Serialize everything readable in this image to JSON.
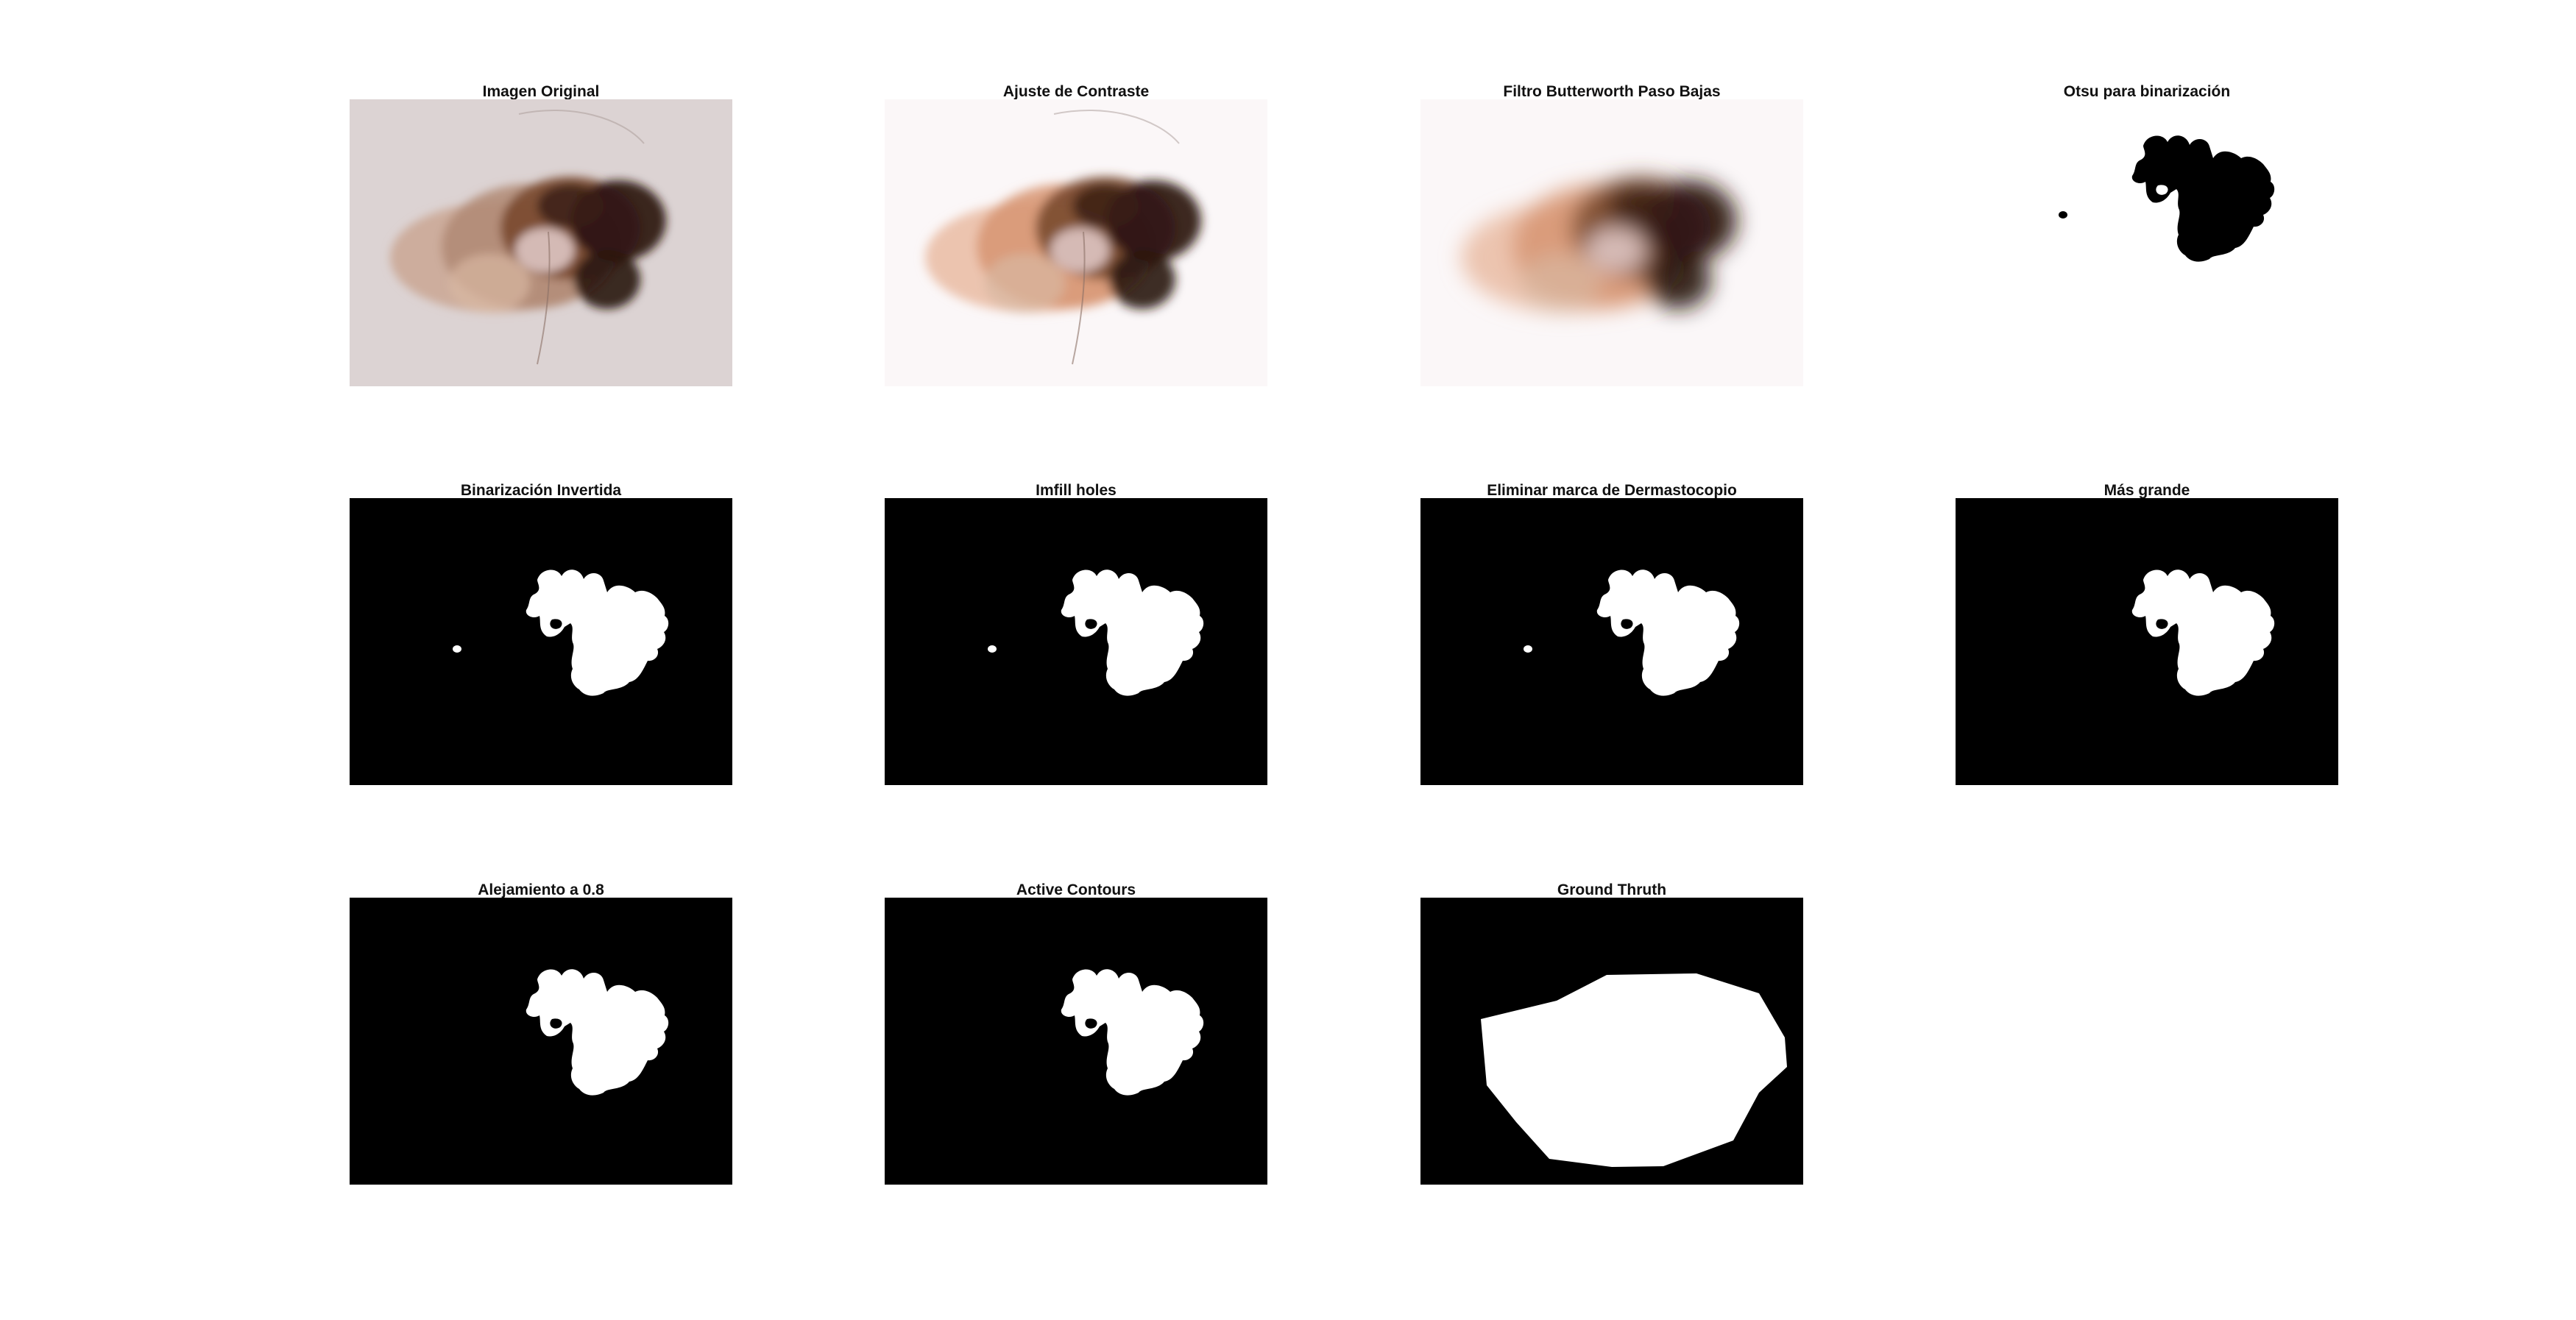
{
  "figure": {
    "panels": [
      {
        "title": "Imagen Original",
        "kind": "original"
      },
      {
        "title": "Ajuste de Contraste",
        "kind": "contrast"
      },
      {
        "title": "Filtro Butterworth Paso Bajas",
        "kind": "blur"
      },
      {
        "title": "Otsu para binarización",
        "kind": "otsu"
      },
      {
        "title": "Binarización Invertida",
        "kind": "inverted"
      },
      {
        "title": "Imfill holes",
        "kind": "inverted"
      },
      {
        "title": "Eliminar marca de Dermastocopio",
        "kind": "inverted"
      },
      {
        "title": "Más grande",
        "kind": "largest"
      },
      {
        "title": "Alejamiento a 0.8",
        "kind": "largest"
      },
      {
        "title": "Active Contours",
        "kind": "largest"
      },
      {
        "title": "Ground Thruth",
        "kind": "groundtruth"
      }
    ],
    "colors": {
      "mask_foreground": "#ffffff",
      "mask_background": "#000000",
      "skin": "#dcd3d3",
      "lesion_dark": "#2a1510",
      "lesion_brown": "#7a4a30"
    }
  }
}
